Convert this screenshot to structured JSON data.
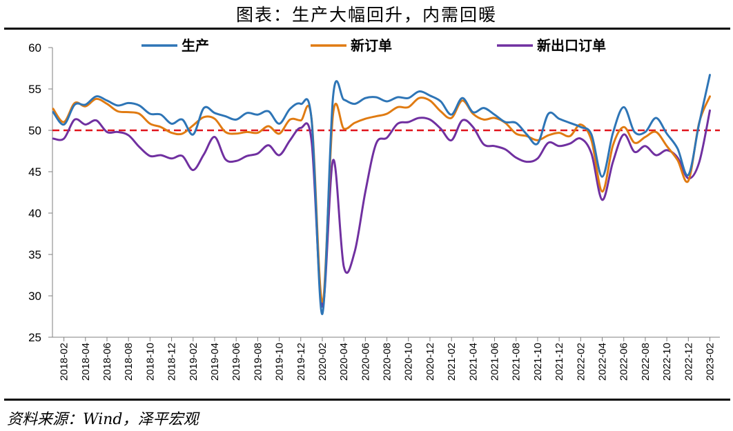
{
  "title": "图表：生产大幅回升，内需回暖",
  "source": "资料来源：Wind，泽平宏观",
  "chart_data": {
    "type": "line",
    "ylim": [
      25,
      60
    ],
    "yticks": [
      25,
      30,
      35,
      40,
      45,
      50,
      55,
      60
    ],
    "reference_line": {
      "value": 50,
      "color": "#e0141c",
      "style": "dashed"
    },
    "legend_position": "top",
    "x": [
      "2018-01",
      "2018-02",
      "2018-03",
      "2018-04",
      "2018-05",
      "2018-06",
      "2018-07",
      "2018-08",
      "2018-09",
      "2018-10",
      "2018-11",
      "2018-12",
      "2019-01",
      "2019-02",
      "2019-03",
      "2019-04",
      "2019-05",
      "2019-06",
      "2019-07",
      "2019-08",
      "2019-09",
      "2019-10",
      "2019-11",
      "2019-12",
      "2020-01",
      "2020-02",
      "2020-03",
      "2020-04",
      "2020-05",
      "2020-06",
      "2020-07",
      "2020-08",
      "2020-09",
      "2020-10",
      "2020-11",
      "2020-12",
      "2021-01",
      "2021-02",
      "2021-03",
      "2021-04",
      "2021-05",
      "2021-06",
      "2021-07",
      "2021-08",
      "2021-09",
      "2021-10",
      "2021-11",
      "2021-12",
      "2022-01",
      "2022-02",
      "2022-03",
      "2022-04",
      "2022-05",
      "2022-06",
      "2022-07",
      "2022-08",
      "2022-09",
      "2022-10",
      "2022-11",
      "2022-12",
      "2023-01",
      "2023-02"
    ],
    "xtick_labels": [
      "2018-02",
      "2018-04",
      "2018-06",
      "2018-08",
      "2018-10",
      "2018-12",
      "2019-02",
      "2019-04",
      "2019-06",
      "2019-08",
      "2019-10",
      "2019-12",
      "2020-02",
      "2020-04",
      "2020-06",
      "2020-08",
      "2020-10",
      "2020-12",
      "2021-02",
      "2021-04",
      "2021-06",
      "2021-08",
      "2021-10",
      "2021-12",
      "2022-02",
      "2022-04",
      "2022-06",
      "2022-08",
      "2022-10",
      "2022-12",
      "2023-02"
    ],
    "series": [
      {
        "name": "生产",
        "color": "#2e75b6",
        "values": [
          52.2,
          50.7,
          53.1,
          53.1,
          54.1,
          53.6,
          53.0,
          53.3,
          53.0,
          52.0,
          51.9,
          50.8,
          51.3,
          49.5,
          52.7,
          52.1,
          51.7,
          51.3,
          52.1,
          51.9,
          52.3,
          50.8,
          52.6,
          53.2,
          51.3,
          27.8,
          54.1,
          53.7,
          53.2,
          53.9,
          54.0,
          53.5,
          54.0,
          53.9,
          54.7,
          54.2,
          53.5,
          51.9,
          53.9,
          52.2,
          52.7,
          51.9,
          51.0,
          50.9,
          49.5,
          48.4,
          52.0,
          51.4,
          50.9,
          50.4,
          49.5,
          44.4,
          49.7,
          52.8,
          49.8,
          49.8,
          51.5,
          49.6,
          47.8,
          44.6,
          50.8,
          56.7
        ]
      },
      {
        "name": "新订单",
        "color": "#e07b12",
        "values": [
          52.6,
          51.0,
          53.3,
          52.9,
          53.8,
          53.2,
          52.3,
          52.2,
          52.0,
          50.8,
          50.4,
          49.7,
          49.6,
          50.6,
          51.6,
          51.4,
          49.8,
          49.6,
          49.8,
          49.7,
          50.5,
          49.6,
          51.3,
          51.2,
          51.4,
          29.3,
          52.0,
          50.2,
          50.9,
          51.4,
          51.7,
          52.0,
          52.8,
          52.8,
          53.9,
          53.6,
          52.3,
          51.5,
          53.6,
          52.0,
          51.3,
          51.5,
          50.9,
          49.6,
          49.3,
          48.8,
          49.4,
          49.7,
          49.3,
          50.7,
          48.8,
          42.6,
          48.2,
          50.4,
          48.5,
          49.2,
          49.8,
          48.1,
          46.4,
          43.9,
          50.9,
          54.1
        ]
      },
      {
        "name": "新出口订单",
        "color": "#7030a0",
        "values": [
          49.0,
          49.0,
          51.3,
          50.7,
          51.2,
          49.8,
          49.8,
          49.4,
          48.0,
          46.9,
          47.0,
          46.6,
          46.9,
          45.2,
          47.1,
          49.2,
          46.5,
          46.3,
          46.9,
          47.2,
          48.2,
          47.0,
          48.8,
          50.3,
          48.7,
          28.7,
          46.4,
          33.5,
          35.3,
          42.6,
          48.4,
          49.1,
          50.8,
          51.0,
          51.5,
          51.3,
          50.2,
          48.8,
          51.2,
          50.4,
          48.3,
          48.1,
          47.7,
          46.7,
          46.2,
          46.6,
          48.5,
          48.1,
          48.4,
          49.0,
          47.2,
          41.6,
          46.2,
          49.5,
          47.4,
          48.1,
          47.0,
          47.6,
          46.7,
          44.2,
          46.1,
          52.4
        ]
      }
    ]
  }
}
